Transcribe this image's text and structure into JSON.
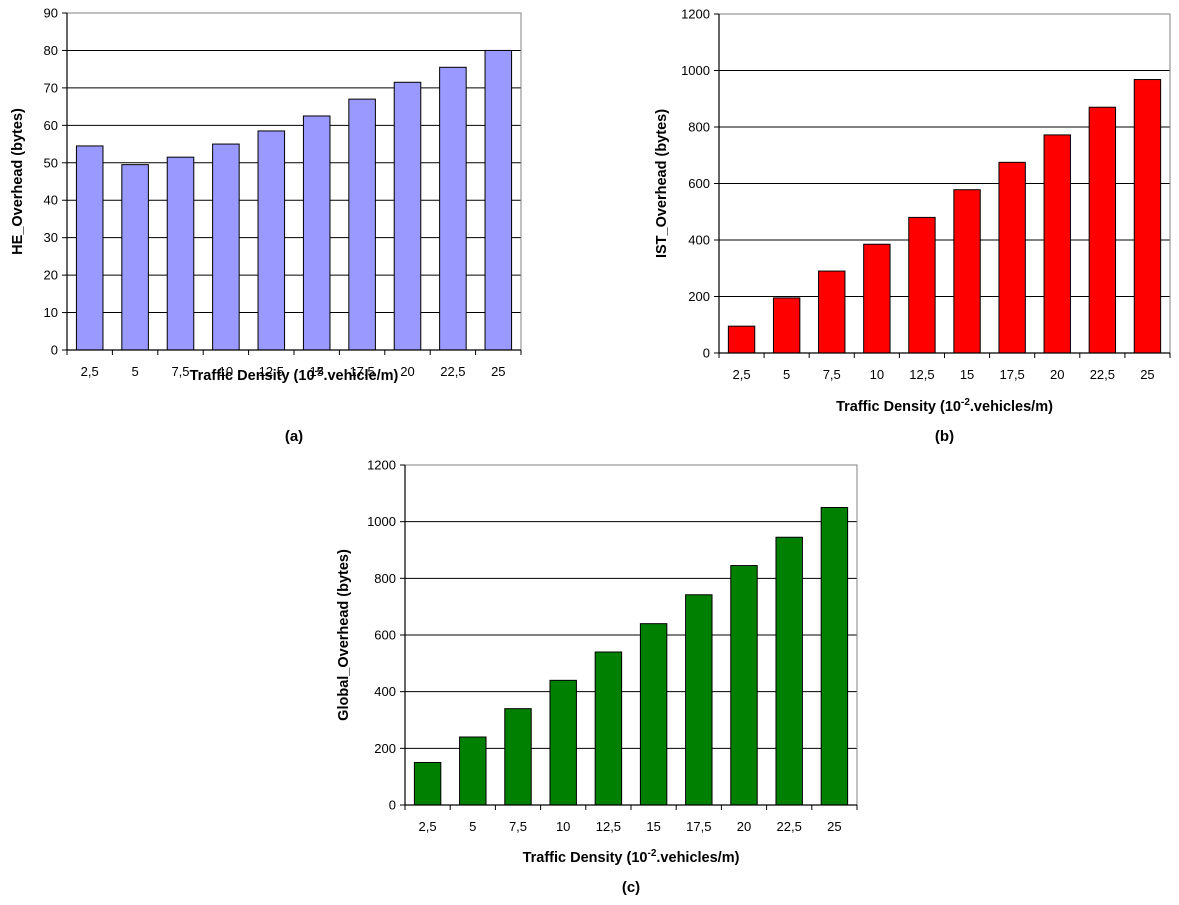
{
  "chart_data": [
    {
      "type": "bar",
      "panel": "(a)",
      "categories": [
        "2,5",
        "5",
        "7,5",
        "10",
        "12,5",
        "15",
        "17,5",
        "20",
        "22,5",
        "25"
      ],
      "values": [
        54.5,
        49.5,
        51.5,
        55,
        58.5,
        62.5,
        67,
        71.5,
        75.5,
        80
      ],
      "ylabel": "HE_Overhead (bytes)",
      "xlabel_prefix": "Traffic Density (10",
      "xlabel_sup": "-2",
      "xlabel_suffix": ".vehicle/m)",
      "ylim": [
        0,
        90
      ],
      "ytick_step": 10,
      "grid": true,
      "bar_color": "#9999ff"
    },
    {
      "type": "bar",
      "panel": "(b)",
      "categories": [
        "2,5",
        "5",
        "7,5",
        "10",
        "12,5",
        "15",
        "17,5",
        "20",
        "22,5",
        "25"
      ],
      "values": [
        95,
        195,
        290,
        385,
        480,
        578,
        675,
        772,
        870,
        968
      ],
      "ylabel": "IST_Overhead (bytes)",
      "xlabel_prefix": "Traffic Density (10",
      "xlabel_sup": "-2",
      "xlabel_suffix": ".vehicles/m)",
      "ylim": [
        0,
        1200
      ],
      "ytick_step": 200,
      "grid": true,
      "bar_color": "#ff0000"
    },
    {
      "type": "bar",
      "panel": "(c)",
      "categories": [
        "2,5",
        "5",
        "7,5",
        "10",
        "12,5",
        "15",
        "17,5",
        "20",
        "22,5",
        "25"
      ],
      "values": [
        150,
        240,
        340,
        440,
        540,
        640,
        742,
        845,
        945,
        1050
      ],
      "ylabel": "Global_Overhead (bytes)",
      "xlabel_prefix": "Traffic Density (10",
      "xlabel_sup": "-2",
      "xlabel_suffix": ".vehicles/m)",
      "ylim": [
        0,
        1200
      ],
      "ytick_step": 200,
      "grid": true,
      "bar_color": "#008000"
    }
  ]
}
